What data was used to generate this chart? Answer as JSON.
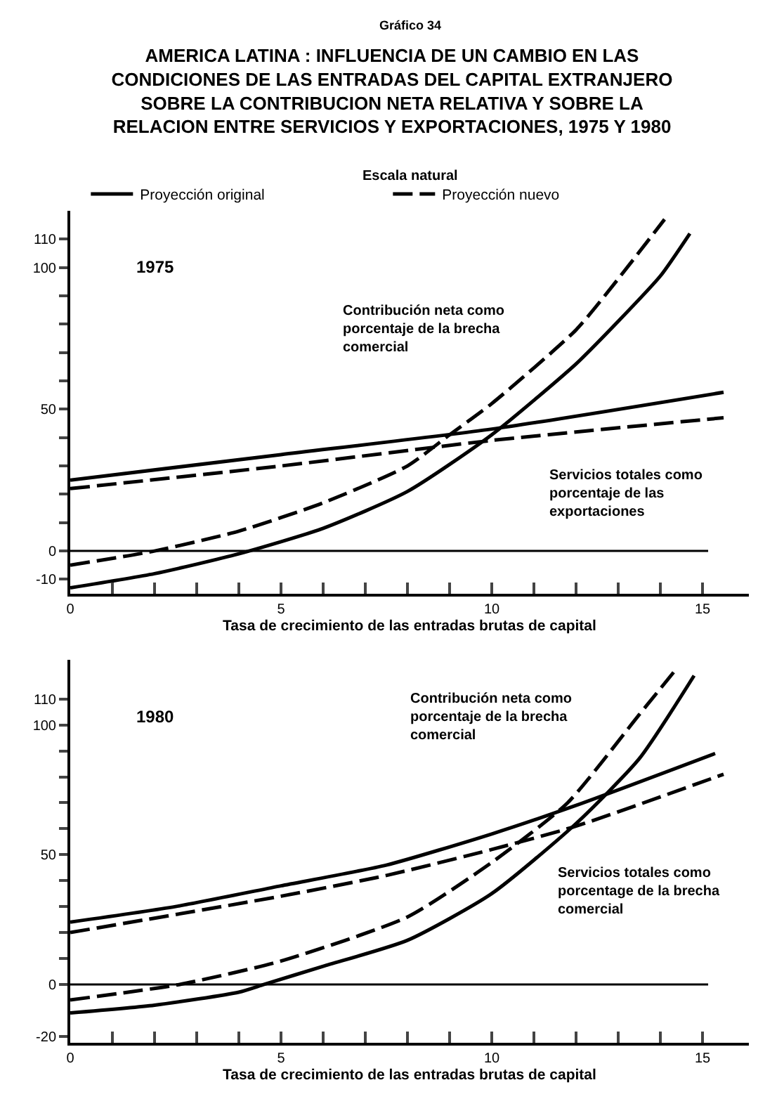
{
  "chart_data": [
    {
      "type": "line",
      "title": "AMERICA LATINA : INFLUENCIA DE UN CAMBIO EN LAS CONDICIONES DE LAS ENTRADAS DEL CAPITAL EXTRANJERO SOBRE LA CONTRIBUCION NETA RELATIVA Y SOBRE LA RELACION ENTRE SERVICIOS Y EXPORTACIONES, 1975 Y 1980",
      "subtitle": "Escala natural",
      "xlabel": "Tasa de crecimiento de las entradas brutas de capital",
      "annotations": [
        "Gráfico 34",
        "1975",
        "Contribución neta como porcentaje de la brecha comercial",
        "Servicios totales como porcentaje de las exportaciones"
      ],
      "series": [
        {
          "name": "Proyección original",
          "color": "#000000",
          "line_style": "solid",
          "x": [
            0,
            2,
            4,
            6,
            8,
            10,
            12,
            13,
            14,
            14.7
          ],
          "values": [
            -13,
            -8,
            -1,
            8,
            21,
            41,
            66,
            81,
            97,
            112
          ]
        },
        {
          "name": "Proyección nuevo",
          "color": "#000000",
          "line_style": "dashed",
          "x": [
            0,
            2,
            4,
            6,
            8,
            9,
            10,
            12,
            13,
            14.1
          ],
          "values": [
            -5,
            0,
            7,
            17,
            30,
            41,
            52,
            78,
            96,
            117
          ]
        },
        {
          "color": "#000000",
          "line_style": "solid",
          "x": [
            0,
            5,
            10,
            15.5
          ],
          "values": [
            25,
            34,
            43,
            56
          ]
        },
        {
          "color": "#000000",
          "line_style": "dashed",
          "x": [
            0,
            5,
            10,
            15.5
          ],
          "values": [
            22,
            30,
            39,
            47
          ]
        }
      ],
      "xlim": [
        0,
        16.1
      ],
      "ylim": [
        -15,
        120
      ],
      "xticks": [
        0,
        {
          "value": 1,
          "label": null
        },
        {
          "value": 2,
          "label": null
        },
        {
          "value": 3,
          "label": null
        },
        {
          "value": 4,
          "label": null
        },
        5,
        {
          "value": 6,
          "label": null
        },
        {
          "value": 7,
          "label": null
        },
        {
          "value": 8,
          "label": null
        },
        {
          "value": 9,
          "label": null
        },
        10,
        {
          "value": 11,
          "label": null
        },
        {
          "value": 12,
          "label": null
        },
        {
          "value": 13,
          "label": null
        },
        {
          "value": 14,
          "label": null
        },
        15
      ],
      "yticks": [
        -10,
        0,
        {
          "value": 10,
          "label": null
        },
        {
          "value": 20,
          "label": null
        },
        {
          "value": 30,
          "label": null
        },
        {
          "value": 40,
          "label": null
        },
        50,
        {
          "value": 60,
          "label": null
        },
        {
          "value": 70,
          "label": null
        },
        {
          "value": 80,
          "label": null
        },
        {
          "value": 90,
          "label": null
        },
        100,
        110
      ],
      "ref_lines": [
        {
          "axis": "y",
          "value": 0,
          "color": "#000000"
        }
      ],
      "legend": "top"
    },
    {
      "type": "line",
      "xlabel": "Tasa de crecimiento de las entradas brutas de capital",
      "annotations": [
        "1980",
        "Contribución neta como porcentaje de la brecha comercial",
        "Servicios totales como porcentage de la brecha comercial"
      ],
      "series": [
        {
          "color": "#000000",
          "line_style": "solid",
          "x": [
            0,
            2,
            4,
            4.6,
            6,
            8,
            10,
            12,
            13.5,
            14.8
          ],
          "values": [
            -11,
            -8,
            -3,
            0,
            7,
            17,
            35,
            62,
            87,
            119
          ]
        },
        {
          "color": "#000000",
          "line_style": "dashed",
          "x": [
            0,
            2.6,
            5,
            8,
            10,
            11.8,
            13.5,
            14.4
          ],
          "values": [
            -6,
            0,
            9,
            26,
            47,
            70,
            104,
            122
          ]
        },
        {
          "color": "#000000",
          "line_style": "solid",
          "x": [
            0,
            2.5,
            5,
            7.5,
            10,
            12,
            15.3
          ],
          "values": [
            24,
            30,
            38,
            46,
            58,
            69,
            89
          ]
        },
        {
          "color": "#000000",
          "line_style": "dashed",
          "x": [
            0,
            5,
            7.5,
            10,
            12,
            15.5
          ],
          "values": [
            20,
            34,
            42,
            52,
            61,
            81
          ]
        }
      ],
      "xlim": [
        0,
        16.1
      ],
      "ylim": [
        -22.5,
        125
      ],
      "xticks": [
        0,
        {
          "value": 1,
          "label": null
        },
        {
          "value": 2,
          "label": null
        },
        {
          "value": 3,
          "label": null
        },
        {
          "value": 4,
          "label": null
        },
        5,
        {
          "value": 6,
          "label": null
        },
        {
          "value": 7,
          "label": null
        },
        {
          "value": 8,
          "label": null
        },
        {
          "value": 9,
          "label": null
        },
        10,
        {
          "value": 11,
          "label": null
        },
        {
          "value": 12,
          "label": null
        },
        {
          "value": 13,
          "label": null
        },
        {
          "value": 14,
          "label": null
        },
        15
      ],
      "yticks": [
        -20,
        0,
        {
          "value": 10,
          "label": null
        },
        {
          "value": 20,
          "label": null
        },
        {
          "value": 30,
          "label": null
        },
        {
          "value": 40,
          "label": null
        },
        50,
        {
          "value": 60,
          "label": null
        },
        {
          "value": 70,
          "label": null
        },
        {
          "value": 80,
          "label": null
        },
        {
          "value": 90,
          "label": null
        },
        100,
        110
      ],
      "ref_lines": [
        {
          "axis": "y",
          "value": 0,
          "color": "#000000"
        }
      ],
      "legend": false
    }
  ]
}
